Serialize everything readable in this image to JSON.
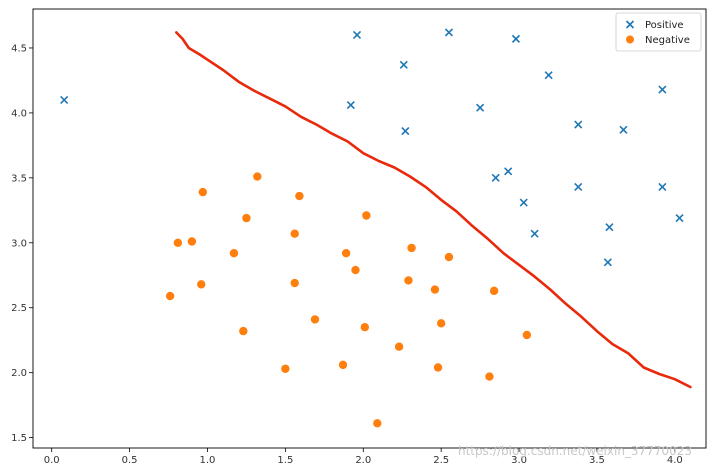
{
  "chart_data": {
    "type": "scatter",
    "title": "",
    "xlabel": "",
    "ylabel": "",
    "xlim": [
      -0.12,
      4.2
    ],
    "ylim": [
      1.42,
      4.8
    ],
    "grid": false,
    "legend_placement": "top-right",
    "x_ticks": [
      "0.0",
      "0.5",
      "1.0",
      "1.5",
      "2.0",
      "2.5",
      "3.0",
      "3.5",
      "4.0"
    ],
    "y_ticks": [
      "1.5",
      "2.0",
      "2.5",
      "3.0",
      "3.5",
      "4.0",
      "4.5"
    ],
    "series": [
      {
        "name": "Positive",
        "marker": "x",
        "color": "#1f77b4",
        "points": [
          [
            0.08,
            4.1
          ],
          [
            1.96,
            4.6
          ],
          [
            2.55,
            4.62
          ],
          [
            2.98,
            4.57
          ],
          [
            2.26,
            4.37
          ],
          [
            3.19,
            4.29
          ],
          [
            3.92,
            4.18
          ],
          [
            1.92,
            4.06
          ],
          [
            2.75,
            4.04
          ],
          [
            3.38,
            3.91
          ],
          [
            2.27,
            3.86
          ],
          [
            3.67,
            3.87
          ],
          [
            2.85,
            3.5
          ],
          [
            2.93,
            3.55
          ],
          [
            3.38,
            3.43
          ],
          [
            3.92,
            3.43
          ],
          [
            3.03,
            3.31
          ],
          [
            4.03,
            3.19
          ],
          [
            3.1,
            3.07
          ],
          [
            3.58,
            3.12
          ],
          [
            3.57,
            2.85
          ]
        ]
      },
      {
        "name": "Negative",
        "marker": "o",
        "color": "#ff7f0e",
        "points": [
          [
            1.32,
            3.51
          ],
          [
            0.97,
            3.39
          ],
          [
            1.59,
            3.36
          ],
          [
            1.25,
            3.19
          ],
          [
            2.02,
            3.21
          ],
          [
            0.81,
            3.0
          ],
          [
            0.9,
            3.01
          ],
          [
            1.56,
            3.07
          ],
          [
            1.17,
            2.92
          ],
          [
            1.89,
            2.92
          ],
          [
            2.31,
            2.96
          ],
          [
            1.95,
            2.79
          ],
          [
            2.55,
            2.89
          ],
          [
            0.96,
            2.68
          ],
          [
            1.56,
            2.69
          ],
          [
            2.29,
            2.71
          ],
          [
            0.76,
            2.59
          ],
          [
            2.46,
            2.64
          ],
          [
            2.84,
            2.63
          ],
          [
            1.69,
            2.41
          ],
          [
            2.5,
            2.38
          ],
          [
            1.23,
            2.32
          ],
          [
            2.01,
            2.35
          ],
          [
            3.05,
            2.29
          ],
          [
            2.23,
            2.2
          ],
          [
            1.87,
            2.06
          ],
          [
            1.5,
            2.03
          ],
          [
            2.48,
            2.04
          ],
          [
            2.81,
            1.97
          ],
          [
            2.09,
            1.61
          ]
        ]
      }
    ],
    "boundary": {
      "color": "#e8290b",
      "points": [
        [
          0.8,
          4.62
        ],
        [
          0.84,
          4.57
        ],
        [
          0.88,
          4.5
        ],
        [
          0.95,
          4.45
        ],
        [
          1.0,
          4.41
        ],
        [
          1.1,
          4.33
        ],
        [
          1.2,
          4.24
        ],
        [
          1.3,
          4.17
        ],
        [
          1.4,
          4.11
        ],
        [
          1.5,
          4.05
        ],
        [
          1.6,
          3.97
        ],
        [
          1.7,
          3.91
        ],
        [
          1.8,
          3.84
        ],
        [
          1.9,
          3.78
        ],
        [
          2.0,
          3.69
        ],
        [
          2.1,
          3.63
        ],
        [
          2.2,
          3.58
        ],
        [
          2.3,
          3.51
        ],
        [
          2.4,
          3.43
        ],
        [
          2.5,
          3.33
        ],
        [
          2.6,
          3.24
        ],
        [
          2.7,
          3.13
        ],
        [
          2.8,
          3.03
        ],
        [
          2.9,
          2.92
        ],
        [
          3.0,
          2.83
        ],
        [
          3.1,
          2.74
        ],
        [
          3.2,
          2.64
        ],
        [
          3.3,
          2.53
        ],
        [
          3.4,
          2.43
        ],
        [
          3.5,
          2.32
        ],
        [
          3.6,
          2.22
        ],
        [
          3.7,
          2.15
        ],
        [
          3.8,
          2.04
        ],
        [
          3.9,
          1.99
        ],
        [
          4.0,
          1.95
        ],
        [
          4.1,
          1.89
        ]
      ]
    },
    "watermark": "https://blog.csdn.net/weixin_37770023"
  }
}
